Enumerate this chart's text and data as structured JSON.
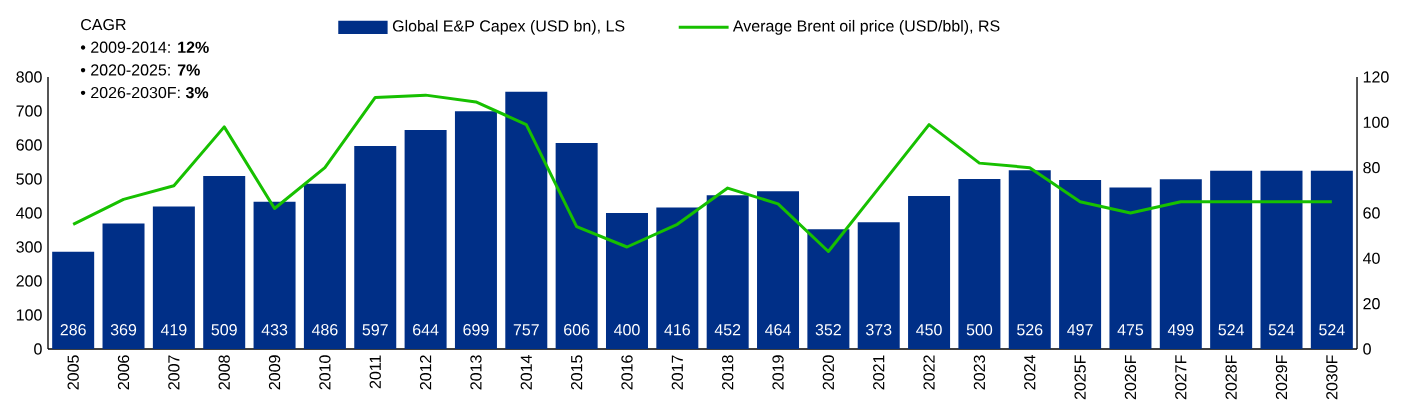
{
  "chart_data": {
    "type": "bar",
    "categories": [
      "2005",
      "2006",
      "2007",
      "2008",
      "2009",
      "2010",
      "2011",
      "2012",
      "2013",
      "2014",
      "2015",
      "2016",
      "2017",
      "2018",
      "2019",
      "2020",
      "2021",
      "2022",
      "2023",
      "2024",
      "2025F",
      "2026F",
      "2027F",
      "2028F",
      "2029F",
      "2030F"
    ],
    "series": [
      {
        "name": "Global E&P Capex (USD bn), LS",
        "color": "#002f87",
        "values": [
          286,
          369,
          419,
          509,
          433,
          486,
          597,
          644,
          699,
          757,
          606,
          400,
          416,
          452,
          464,
          352,
          373,
          450,
          500,
          526,
          497,
          475,
          499,
          524,
          524,
          524
        ],
        "value_labels": [
          "286",
          "369",
          "419",
          "509",
          "433",
          "486",
          "597",
          "644",
          "699",
          "757",
          "606",
          "400",
          "416",
          "452",
          "464",
          "352",
          "373",
          "450",
          "500",
          "526",
          "497",
          "475",
          "499",
          "524",
          "524",
          "524"
        ]
      },
      {
        "name": "Average Brent oil price (USD/bbl), RS",
        "type": "line",
        "axis": "y2",
        "color": "#17c000",
        "values": [
          55,
          66,
          72,
          98,
          62,
          80,
          111,
          112,
          109,
          99,
          54,
          45,
          55,
          71,
          64,
          43,
          71,
          99,
          82,
          80,
          65,
          60,
          65,
          65,
          65,
          65
        ]
      }
    ],
    "ylim": [
      0,
      800
    ],
    "yticks": [
      0,
      100,
      200,
      300,
      400,
      500,
      600,
      700,
      800
    ],
    "y2lim": [
      0,
      120
    ],
    "y2ticks": [
      0,
      20,
      40,
      60,
      80,
      100,
      120
    ],
    "legend": "top",
    "grid": false,
    "marker": "none",
    "line_style": "solid",
    "annotations": [
      "CAGR",
      "•  2009-2014: **12%**",
      "•  2020-2025: **7%**",
      "•  2026-2030F: **3%**"
    ]
  }
}
